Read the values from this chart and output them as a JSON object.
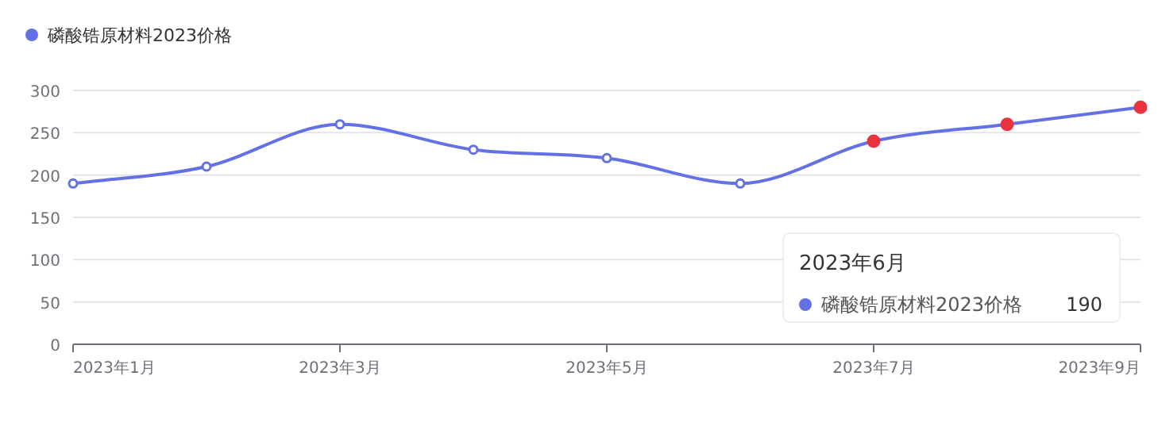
{
  "chart_data": {
    "type": "line",
    "categories": [
      "2023年1月",
      null,
      "2023年3月",
      null,
      "2023年5月",
      null,
      "2023年7月",
      null,
      "2023年9月"
    ],
    "series": [
      {
        "name": "磷酸锆原材料2023价格",
        "color": "#6371e4",
        "values": [
          190,
          210,
          260,
          230,
          220,
          190,
          240,
          260,
          280
        ],
        "colors": [
          "#6371e4",
          "#6371e4",
          "#6371e4",
          "#6371e4",
          "#6371e4",
          "#6371e4",
          "#e8343d",
          "#e8343d",
          "#e8343d"
        ]
      }
    ],
    "ylim": [
      0,
      300
    ],
    "yticks": [
      0,
      50,
      100,
      150,
      200,
      250,
      300
    ],
    "grid": "y",
    "legend": "top left",
    "marker": "circle",
    "line_style": "solid",
    "annotations": [
      "2023年6月",
      "190"
    ]
  }
}
